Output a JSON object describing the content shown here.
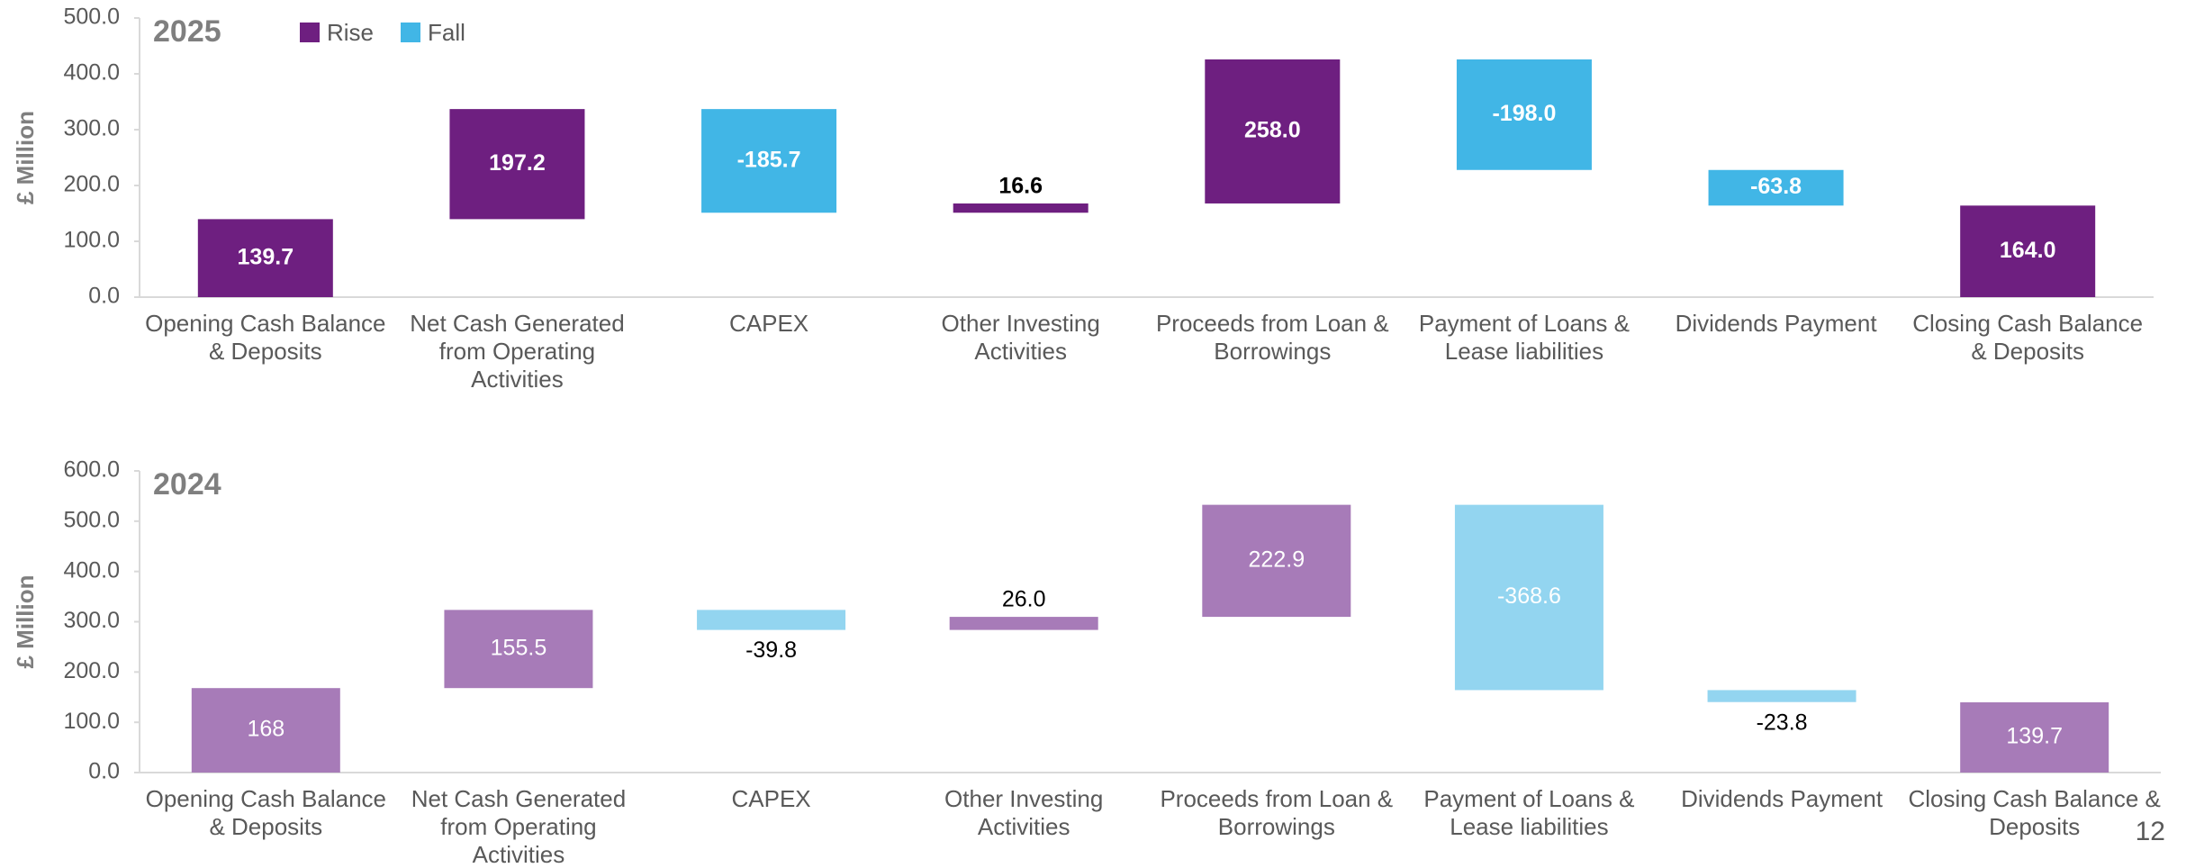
{
  "chart_data": [
    {
      "type": "waterfall",
      "title": "2025",
      "ylabel": "£ Million",
      "categories": [
        "Opening Cash Balance & Deposits",
        "Net Cash Generated from Operating Activities",
        "CAPEX",
        "Other Investing Activities",
        "Proceeds from Loan & Borrowings",
        "Payment of Loans & Lease liabilities",
        "Dividends Payment",
        "Closing Cash Balance & Deposits"
      ],
      "values": [
        139.7,
        197.2,
        -185.7,
        16.6,
        258.0,
        -198.0,
        -63.8,
        164.0
      ],
      "value_labels": [
        "139.7",
        "197.2",
        "-185.7",
        "16.6",
        "258.0",
        "-198.0",
        "-63.8",
        "164.0"
      ],
      "series": [
        {
          "name": "Rise",
          "color": "#6e1f80"
        },
        {
          "name": "Fall",
          "color": "#41b6e6"
        }
      ],
      "legend": true,
      "ylim": [
        0,
        500
      ],
      "yticks": [
        {
          "value": 0,
          "label": "0.0"
        },
        {
          "value": 100,
          "label": "100.0"
        },
        {
          "value": 200,
          "label": "200.0"
        },
        {
          "value": 300,
          "label": "300.0"
        },
        {
          "value": 400,
          "label": "400.0"
        },
        {
          "value": 500,
          "label": "500.0"
        }
      ]
    },
    {
      "type": "waterfall",
      "title": "2024",
      "ylabel": "£ Million",
      "categories": [
        "Opening Cash Balance & Deposits",
        "Net Cash Generated from Operating Activities",
        "CAPEX",
        "Other Investing Activities",
        "Proceeds from Loan & Borrowings",
        "Payment of Loans & Lease liabilities",
        "Dividends Payment",
        "Closing Cash Balance & Deposits"
      ],
      "values": [
        168,
        155.5,
        -39.8,
        26.0,
        222.9,
        -368.6,
        -23.8,
        139.7
      ],
      "value_labels": [
        "168",
        "155.5",
        "-39.8",
        "26.0",
        "222.9",
        "-368.6",
        "-23.8",
        "139.7"
      ],
      "series": [
        {
          "name": "Rise",
          "color": "#a77bb8"
        },
        {
          "name": "Fall",
          "color": "#93d5f0"
        }
      ],
      "legend": false,
      "ylim": [
        0,
        600
      ],
      "yticks": [
        {
          "value": 0,
          "label": "0.0"
        },
        {
          "value": 100,
          "label": "100.0"
        },
        {
          "value": 200,
          "label": "200.0"
        },
        {
          "value": 300,
          "label": "300.0"
        },
        {
          "value": 400,
          "label": "400.0"
        },
        {
          "value": 500,
          "label": "500.0"
        },
        {
          "value": 600,
          "label": "600.0"
        }
      ]
    }
  ],
  "page_number": "12"
}
